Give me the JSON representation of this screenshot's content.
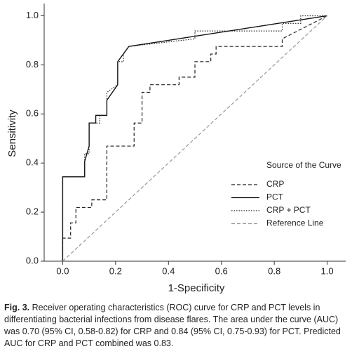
{
  "chart_data": {
    "type": "line",
    "x_label": "1-Specificity",
    "y_label": "Sensitivity",
    "xlim": [
      -0.07,
      1.07
    ],
    "ylim": [
      0,
      1.05
    ],
    "xticks": [
      {
        "value": 0,
        "label": "0.0"
      },
      0.2,
      0.4,
      0.6,
      0.8,
      {
        "value": 1,
        "label": "1.0"
      }
    ],
    "yticks": [
      {
        "value": 0,
        "label": "0.0"
      },
      0.2,
      0.4,
      0.6,
      0.8,
      {
        "value": 1,
        "label": "1.0"
      }
    ],
    "legend_title": "Source of the Curve",
    "legend_position": "lower right",
    "series": [
      {
        "name": "CRP",
        "color": "#222222",
        "style": "dashed",
        "x": [
          0,
          0,
          0.03,
          0.03,
          0.05,
          0.05,
          0.11,
          0.11,
          0.167,
          0.167,
          0.27,
          0.27,
          0.3,
          0.3,
          0.33,
          0.33,
          0.44,
          0.44,
          0.5,
          0.5,
          0.56,
          0.56,
          0.58,
          0.58,
          0.83,
          0.83,
          1
        ],
        "values": [
          0,
          0.094,
          0.094,
          0.156,
          0.156,
          0.219,
          0.219,
          0.25,
          0.25,
          0.469,
          0.469,
          0.563,
          0.563,
          0.688,
          0.688,
          0.719,
          0.719,
          0.75,
          0.75,
          0.813,
          0.813,
          0.844,
          0.844,
          0.875,
          0.875,
          0.906,
          1
        ]
      },
      {
        "name": "PCT",
        "color": "#111111",
        "style": "solid",
        "x": [
          0,
          0,
          0.083,
          0.083,
          0.1,
          0.1,
          0.125,
          0.125,
          0.167,
          0.167,
          0.208,
          0.208,
          0.25,
          1
        ],
        "values": [
          0,
          0.344,
          0.344,
          0.406,
          0.469,
          0.563,
          0.563,
          0.594,
          0.594,
          0.656,
          0.719,
          0.813,
          0.875,
          1
        ]
      },
      {
        "name": "CRP + PCT",
        "color": "#222222",
        "style": "dotted",
        "x": [
          0,
          0,
          0.083,
          0.083,
          0.1,
          0.1,
          0.14,
          0.14,
          0.167,
          0.167,
          0.208,
          0.208,
          0.23,
          0.23,
          0.25,
          0.5,
          0.5,
          0.83,
          0.83,
          0.9,
          0.9,
          1
        ],
        "values": [
          0,
          0.344,
          0.344,
          0.438,
          0.438,
          0.563,
          0.563,
          0.594,
          0.594,
          0.688,
          0.719,
          0.813,
          0.813,
          0.844,
          0.875,
          0.906,
          0.938,
          0.938,
          0.969,
          0.969,
          1,
          1
        ]
      },
      {
        "name": "Reference Line",
        "color": "#9a9a9a",
        "style": "dashed",
        "x": [
          0,
          1
        ],
        "values": [
          0,
          1
        ]
      }
    ]
  },
  "caption": {
    "label": "Fig. 3.",
    "text": "Receiver operating characteristics (ROC) curve for CRP and PCT levels in differentiating bacterial infections from disease flares. The area under the curve (AUC) was 0.70 (95% CI, 0.58-0.82) for CRP and 0.84 (95% CI, 0.75-0.93) for PCT. Predicted AUC for CRP and PCT combined was 0.83."
  }
}
